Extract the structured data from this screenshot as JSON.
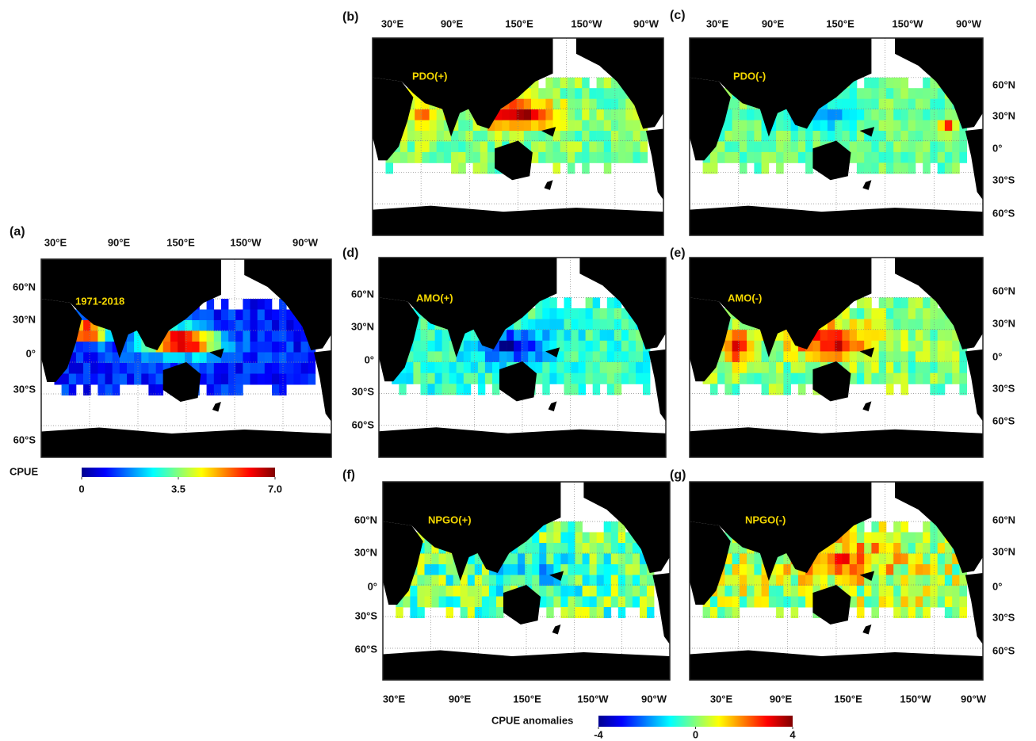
{
  "panels": [
    {
      "label": "(a)",
      "title": "1971-2018",
      "lon_labels": [
        "30°E",
        "90°E",
        "150°E",
        "150°W",
        "90°W"
      ],
      "lat_labels": [
        "60°N",
        "30°N",
        "0°",
        "30°S",
        "60°S"
      ]
    },
    {
      "label": "(b)",
      "title": "PDO(+)",
      "lon_labels": [
        "30°E",
        "90°E",
        "150°E",
        "150°W",
        "90°W"
      ]
    },
    {
      "label": "(c)",
      "title": "PDO(-)",
      "lon_labels": [
        "30°E",
        "90°E",
        "150°E",
        "150°W",
        "90°W"
      ],
      "lat_labels": [
        "60°N",
        "30°N",
        "0°",
        "30°S",
        "60°S"
      ]
    },
    {
      "label": "(d)",
      "title": "AMO(+)",
      "lat_labels": [
        "60°N",
        "30°N",
        "0°",
        "30°S",
        "60°S"
      ]
    },
    {
      "label": "(e)",
      "title": "AMO(-)",
      "lat_labels": [
        "60°N",
        "30°N",
        "0°",
        "30°S",
        "60°S"
      ]
    },
    {
      "label": "(f)",
      "title": "NPGO(+)",
      "lon_labels": [
        "30°E",
        "90°E",
        "150°E",
        "150°W",
        "90°W"
      ],
      "lat_labels": [
        "60°N",
        "30°N",
        "0°",
        "30°S",
        "60°S"
      ]
    },
    {
      "label": "(g)",
      "title": "NPGO(-)",
      "lon_labels": [
        "30°E",
        "90°E",
        "150°E",
        "150°W",
        "90°W"
      ],
      "lat_labels": [
        "60°N",
        "30°N",
        "0°",
        "30°S",
        "60°S"
      ]
    }
  ],
  "colorbars": [
    {
      "title": "CPUE",
      "ticks": [
        0,
        3.5,
        {
          "value": 7,
          "label": "7.0"
        }
      ]
    },
    {
      "title": "CPUE anomalies",
      "ticks": [
        -4,
        0,
        4
      ]
    }
  ]
}
